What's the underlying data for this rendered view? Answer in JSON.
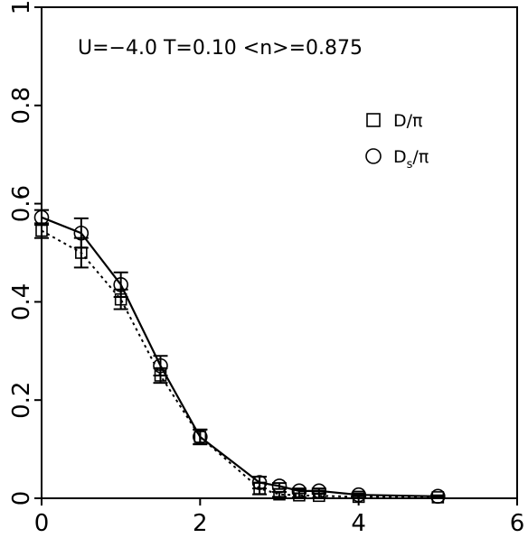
{
  "chart_data": {
    "type": "line",
    "title": "",
    "xlabel": "",
    "ylabel": "",
    "xlim": [
      0,
      6
    ],
    "ylim": [
      0,
      1
    ],
    "x_ticks": [
      "0",
      "2",
      "4",
      "6"
    ],
    "y_ticks": [
      "0",
      "0.2",
      "0.4",
      "0.6",
      "0.8",
      "1"
    ],
    "annotation": "U=−4.0  T=0.10  <n>=0.875",
    "grid": false,
    "legend_placement": "top-right",
    "series": [
      {
        "name": "D/π",
        "legend_main": "D/π",
        "legend_sub": "",
        "marker": "square",
        "line": "dotted",
        "x": [
          0,
          0.5,
          1.0,
          1.5,
          2.0,
          2.75,
          3.0,
          3.25,
          3.5,
          4.0,
          5.0
        ],
        "y": [
          0.545,
          0.5,
          0.405,
          0.25,
          0.125,
          0.02,
          0.008,
          0.006,
          0.005,
          0.003,
          0.002
        ],
        "err": [
          0.015,
          0.03,
          0.02,
          0.015,
          0.015,
          0.012,
          0.005,
          0.004,
          0.004,
          0.003,
          0.002
        ]
      },
      {
        "name": "D_s/π",
        "legend_main": "D",
        "legend_sub": "s",
        "legend_tail": "/π",
        "marker": "circle",
        "line": "solid",
        "x": [
          0,
          0.5,
          1.0,
          1.5,
          2.0,
          2.75,
          3.0,
          3.25,
          3.5,
          4.0,
          5.0
        ],
        "y": [
          0.572,
          0.54,
          0.435,
          0.27,
          0.125,
          0.032,
          0.025,
          0.015,
          0.015,
          0.007,
          0.004
        ],
        "err": [
          0.015,
          0.03,
          0.025,
          0.02,
          0.015,
          0.012,
          0.006,
          0.005,
          0.005,
          0.003,
          0.002
        ]
      }
    ]
  }
}
